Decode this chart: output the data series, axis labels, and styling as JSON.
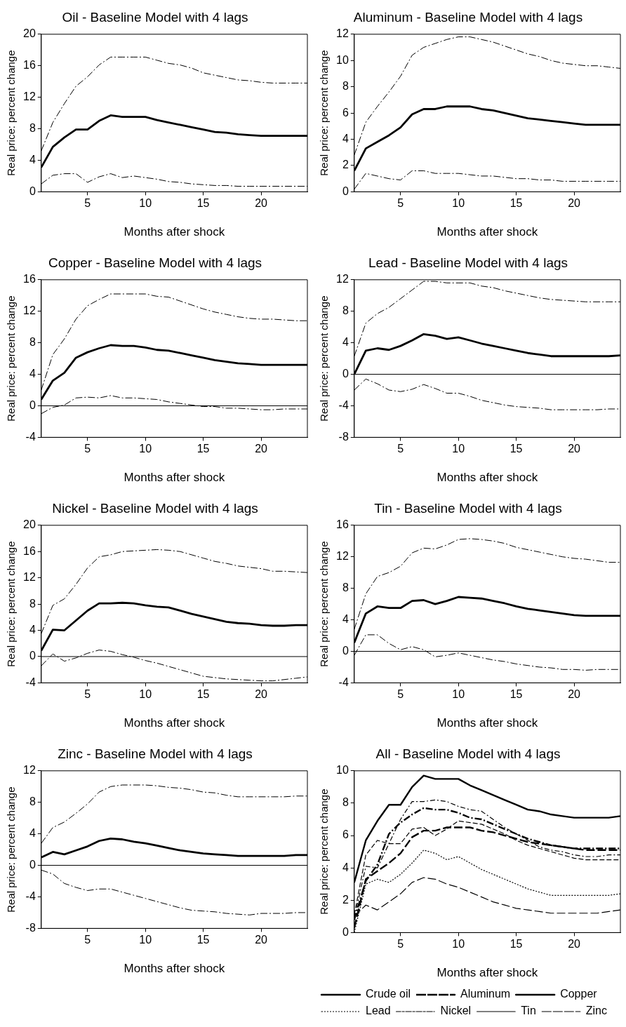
{
  "chart_data": [
    {
      "type": "line",
      "title": "Oil - Baseline Model with 4 lags",
      "xlabel": "Months after shock",
      "ylabel": "Real price: percent change",
      "x": [
        1,
        2,
        3,
        4,
        5,
        6,
        7,
        8,
        9,
        10,
        11,
        12,
        13,
        14,
        15,
        16,
        17,
        18,
        19,
        20,
        21,
        22,
        23,
        24
      ],
      "xlim": [
        1,
        24
      ],
      "xticks": [
        5,
        10,
        15,
        20
      ],
      "ylim": [
        0,
        20
      ],
      "yticks": [
        0,
        4,
        8,
        12,
        16,
        20
      ],
      "grid": false,
      "line_style": "solid",
      "series": [
        {
          "color": "#000000",
          "values": [
            3.1,
            5.7,
            6.9,
            7.9,
            7.9,
            9.0,
            9.7,
            9.5,
            9.5,
            9.5,
            9.1,
            8.8,
            8.5,
            8.2,
            7.9,
            7.6,
            7.5,
            7.3,
            7.2,
            7.1,
            7.1,
            7.1,
            7.1,
            7.1
          ]
        },
        {
          "color": "#000000",
          "line_style": "dashed",
          "values": [
            5.2,
            8.8,
            11.2,
            13.4,
            14.6,
            16.1,
            17.1,
            17.1,
            17.1,
            17.1,
            16.7,
            16.3,
            16.1,
            15.7,
            15.1,
            14.8,
            14.5,
            14.2,
            14.1,
            13.9,
            13.8,
            13.8,
            13.8,
            13.8
          ]
        },
        {
          "color": "#000000",
          "line_style": "dashed",
          "values": [
            1.0,
            2.1,
            2.3,
            2.3,
            1.2,
            1.9,
            2.3,
            1.8,
            2.0,
            1.8,
            1.6,
            1.3,
            1.2,
            1.0,
            0.9,
            0.8,
            0.8,
            0.7,
            0.7,
            0.7,
            0.7,
            0.7,
            0.7,
            0.7
          ]
        }
      ]
    },
    {
      "type": "line",
      "title": "Aluminum - Baseline Model with 4 lags",
      "xlabel": "Months after shock",
      "ylabel": "Real price: percent change",
      "x": [
        1,
        2,
        3,
        4,
        5,
        6,
        7,
        8,
        9,
        10,
        11,
        12,
        13,
        14,
        15,
        16,
        17,
        18,
        19,
        20,
        21,
        22,
        23,
        24
      ],
      "xlim": [
        1,
        24
      ],
      "xticks": [
        5,
        10,
        15,
        20
      ],
      "ylim": [
        0,
        12
      ],
      "yticks": [
        0,
        2,
        4,
        6,
        8,
        10,
        12
      ],
      "grid": false,
      "line_style": "solid",
      "series": [
        {
          "color": "#000000",
          "values": [
            1.6,
            3.3,
            3.8,
            4.3,
            4.9,
            5.9,
            6.3,
            6.3,
            6.5,
            6.5,
            6.5,
            6.3,
            6.2,
            6.0,
            5.8,
            5.6,
            5.5,
            5.4,
            5.3,
            5.2,
            5.1,
            5.1,
            5.1,
            5.1
          ]
        },
        {
          "color": "#000000",
          "line_style": "dashed",
          "values": [
            2.8,
            5.3,
            6.5,
            7.6,
            8.8,
            10.4,
            11.0,
            11.3,
            11.6,
            11.8,
            11.8,
            11.6,
            11.4,
            11.1,
            10.8,
            10.5,
            10.3,
            10.0,
            9.8,
            9.7,
            9.6,
            9.6,
            9.5,
            9.4
          ]
        },
        {
          "color": "#000000",
          "line_style": "dashed",
          "values": [
            0.2,
            1.4,
            1.2,
            1.0,
            0.9,
            1.6,
            1.6,
            1.4,
            1.4,
            1.4,
            1.3,
            1.2,
            1.2,
            1.1,
            1.0,
            1.0,
            0.9,
            0.9,
            0.8,
            0.8,
            0.8,
            0.8,
            0.8,
            0.8
          ]
        }
      ]
    },
    {
      "type": "line",
      "title": "Copper - Baseline Model with 4 lags",
      "xlabel": "Months after shock",
      "ylabel": "Real price: percent change",
      "x": [
        1,
        2,
        3,
        4,
        5,
        6,
        7,
        8,
        9,
        10,
        11,
        12,
        13,
        14,
        15,
        16,
        17,
        18,
        19,
        20,
        21,
        22,
        23,
        24
      ],
      "xlim": [
        1,
        24
      ],
      "xticks": [
        5,
        10,
        15,
        20
      ],
      "ylim": [
        -4,
        16
      ],
      "yticks": [
        -4,
        0,
        4,
        8,
        12,
        16
      ],
      "grid": false,
      "line_style": "solid",
      "ref_lines": [
        {
          "axis": "y",
          "value": 0
        }
      ],
      "series": [
        {
          "color": "#000000",
          "values": [
            0.8,
            3.2,
            4.2,
            6.1,
            6.8,
            7.3,
            7.7,
            7.6,
            7.6,
            7.4,
            7.1,
            7.0,
            6.7,
            6.4,
            6.1,
            5.8,
            5.6,
            5.4,
            5.3,
            5.2,
            5.2,
            5.2,
            5.2,
            5.2
          ]
        },
        {
          "color": "#000000",
          "line_style": "dashed",
          "values": [
            2.0,
            6.5,
            8.5,
            11.0,
            12.7,
            13.5,
            14.2,
            14.2,
            14.2,
            14.2,
            13.9,
            13.8,
            13.3,
            12.8,
            12.3,
            11.9,
            11.6,
            11.3,
            11.1,
            11.0,
            11.0,
            10.9,
            10.8,
            10.8
          ]
        },
        {
          "color": "#000000",
          "line_style": "dashed",
          "values": [
            -1.0,
            -0.2,
            0.1,
            1.0,
            1.1,
            1.0,
            1.3,
            1.0,
            1.0,
            0.9,
            0.8,
            0.5,
            0.3,
            0.1,
            -0.1,
            -0.1,
            -0.3,
            -0.3,
            -0.4,
            -0.5,
            -0.5,
            -0.4,
            -0.4,
            -0.4
          ]
        }
      ]
    },
    {
      "type": "line",
      "title": "Lead - Baseline Model with 4 lags",
      "xlabel": "Months after shock",
      "ylabel": "Real price: percent change",
      "x": [
        1,
        2,
        3,
        4,
        5,
        6,
        7,
        8,
        9,
        10,
        11,
        12,
        13,
        14,
        15,
        16,
        17,
        18,
        19,
        20,
        21,
        22,
        23,
        24
      ],
      "xlim": [
        1,
        24
      ],
      "xticks": [
        5,
        10,
        15,
        20
      ],
      "ylim": [
        -8,
        12
      ],
      "yticks": [
        -8,
        -4,
        0,
        4,
        8,
        12
      ],
      "grid": false,
      "line_style": "solid",
      "ref_lines": [
        {
          "axis": "y",
          "value": 0
        }
      ],
      "series": [
        {
          "color": "#000000",
          "values": [
            0.0,
            3.0,
            3.3,
            3.1,
            3.6,
            4.3,
            5.1,
            4.9,
            4.5,
            4.7,
            4.3,
            3.9,
            3.6,
            3.3,
            3.0,
            2.7,
            2.5,
            2.3,
            2.3,
            2.3,
            2.3,
            2.3,
            2.3,
            2.4
          ]
        },
        {
          "color": "#000000",
          "line_style": "dashed",
          "values": [
            2.3,
            6.5,
            7.7,
            8.5,
            9.6,
            10.7,
            11.8,
            11.8,
            11.6,
            11.6,
            11.6,
            11.2,
            11.0,
            10.6,
            10.3,
            10.0,
            9.7,
            9.5,
            9.4,
            9.3,
            9.2,
            9.2,
            9.2,
            9.2
          ]
        },
        {
          "color": "#000000",
          "line_style": "dashed",
          "values": [
            -2.0,
            -0.6,
            -1.2,
            -2.0,
            -2.2,
            -1.9,
            -1.3,
            -1.8,
            -2.4,
            -2.4,
            -2.8,
            -3.3,
            -3.6,
            -3.9,
            -4.1,
            -4.2,
            -4.3,
            -4.5,
            -4.5,
            -4.5,
            -4.5,
            -4.5,
            -4.4,
            -4.4
          ]
        }
      ]
    },
    {
      "type": "line",
      "title": "Nickel - Baseline Model with 4 lags",
      "xlabel": "Months after shock",
      "ylabel": "Real price: percent change",
      "x": [
        1,
        2,
        3,
        4,
        5,
        6,
        7,
        8,
        9,
        10,
        11,
        12,
        13,
        14,
        15,
        16,
        17,
        18,
        19,
        20,
        21,
        22,
        23,
        24
      ],
      "xlim": [
        1,
        24
      ],
      "xticks": [
        5,
        10,
        15,
        20
      ],
      "ylim": [
        -4,
        20
      ],
      "yticks": [
        -4,
        0,
        4,
        8,
        12,
        16,
        20
      ],
      "grid": false,
      "line_style": "solid",
      "ref_lines": [
        {
          "axis": "y",
          "value": 0
        }
      ],
      "series": [
        {
          "color": "#000000",
          "values": [
            0.9,
            4.1,
            4.0,
            5.5,
            7.0,
            8.1,
            8.1,
            8.2,
            8.1,
            7.8,
            7.6,
            7.5,
            7.0,
            6.5,
            6.1,
            5.7,
            5.3,
            5.1,
            5.0,
            4.8,
            4.7,
            4.7,
            4.8,
            4.8
          ]
        },
        {
          "color": "#000000",
          "line_style": "dashed",
          "values": [
            3.5,
            7.8,
            8.8,
            11.0,
            13.5,
            15.2,
            15.5,
            16.0,
            16.1,
            16.2,
            16.3,
            16.2,
            16.0,
            15.5,
            15.0,
            14.5,
            14.2,
            13.8,
            13.6,
            13.4,
            13.0,
            13.0,
            12.9,
            12.8
          ]
        },
        {
          "color": "#000000",
          "line_style": "dashed",
          "values": [
            -1.4,
            0.4,
            -0.7,
            -0.2,
            0.5,
            1.0,
            0.8,
            0.3,
            -0.1,
            -0.6,
            -1.0,
            -1.5,
            -2.0,
            -2.5,
            -3.0,
            -3.2,
            -3.4,
            -3.5,
            -3.6,
            -3.7,
            -3.7,
            -3.5,
            -3.3,
            -3.1
          ]
        }
      ]
    },
    {
      "type": "line",
      "title": "Tin - Baseline Model with 4 lags",
      "xlabel": "Months after shock",
      "ylabel": "Real price: percent change",
      "x": [
        1,
        2,
        3,
        4,
        5,
        6,
        7,
        8,
        9,
        10,
        11,
        12,
        13,
        14,
        15,
        16,
        17,
        18,
        19,
        20,
        21,
        22,
        23,
        24
      ],
      "xlim": [
        1,
        24
      ],
      "xticks": [
        5,
        10,
        15,
        20
      ],
      "ylim": [
        -4,
        16
      ],
      "yticks": [
        -4,
        0,
        4,
        8,
        12,
        16
      ],
      "grid": false,
      "line_style": "solid",
      "ref_lines": [
        {
          "axis": "y",
          "value": 0
        }
      ],
      "series": [
        {
          "color": "#000000",
          "values": [
            1.1,
            4.8,
            5.7,
            5.5,
            5.5,
            6.4,
            6.5,
            6.0,
            6.4,
            6.9,
            6.8,
            6.7,
            6.4,
            6.1,
            5.7,
            5.4,
            5.2,
            5.0,
            4.8,
            4.6,
            4.5,
            4.5,
            4.5,
            4.5
          ]
        },
        {
          "color": "#000000",
          "line_style": "dashed",
          "values": [
            2.8,
            7.3,
            9.5,
            10.0,
            10.8,
            12.5,
            13.1,
            13.0,
            13.5,
            14.2,
            14.3,
            14.2,
            14.0,
            13.7,
            13.2,
            12.9,
            12.6,
            12.3,
            12.0,
            11.8,
            11.7,
            11.5,
            11.3,
            11.3
          ]
        },
        {
          "color": "#000000",
          "line_style": "dashed",
          "values": [
            -0.5,
            2.1,
            2.1,
            1.0,
            0.2,
            0.6,
            0.2,
            -0.7,
            -0.5,
            -0.2,
            -0.5,
            -0.8,
            -1.1,
            -1.3,
            -1.6,
            -1.8,
            -2.0,
            -2.1,
            -2.3,
            -2.3,
            -2.4,
            -2.3,
            -2.3,
            -2.3
          ]
        }
      ]
    },
    {
      "type": "line",
      "title": "Zinc - Baseline Model with 4 lags",
      "xlabel": "Months after shock",
      "ylabel": "Real price: percent change",
      "x": [
        1,
        2,
        3,
        4,
        5,
        6,
        7,
        8,
        9,
        10,
        11,
        12,
        13,
        14,
        15,
        16,
        17,
        18,
        19,
        20,
        21,
        22,
        23,
        24
      ],
      "xlim": [
        1,
        24
      ],
      "xticks": [
        5,
        10,
        15,
        20
      ],
      "ylim": [
        -8,
        12
      ],
      "yticks": [
        -8,
        -4,
        0,
        4,
        8,
        12
      ],
      "grid": false,
      "line_style": "solid",
      "ref_lines": [
        {
          "axis": "y",
          "value": 0
        }
      ],
      "series": [
        {
          "color": "#000000",
          "values": [
            1.0,
            1.7,
            1.4,
            1.9,
            2.4,
            3.1,
            3.4,
            3.3,
            3.0,
            2.8,
            2.5,
            2.2,
            1.9,
            1.7,
            1.5,
            1.4,
            1.3,
            1.2,
            1.2,
            1.2,
            1.2,
            1.2,
            1.3,
            1.3
          ]
        },
        {
          "color": "#000000",
          "line_style": "dashed",
          "values": [
            2.8,
            4.8,
            5.5,
            6.6,
            7.8,
            9.3,
            10.0,
            10.2,
            10.2,
            10.2,
            10.1,
            9.9,
            9.8,
            9.6,
            9.3,
            9.2,
            8.9,
            8.7,
            8.7,
            8.7,
            8.7,
            8.7,
            8.8,
            8.8
          ]
        },
        {
          "color": "#000000",
          "line_style": "dashed",
          "values": [
            -0.6,
            -1.1,
            -2.3,
            -2.8,
            -3.2,
            -3.0,
            -3.0,
            -3.4,
            -3.8,
            -4.2,
            -4.6,
            -5.0,
            -5.4,
            -5.7,
            -5.8,
            -5.9,
            -6.1,
            -6.2,
            -6.3,
            -6.1,
            -6.1,
            -6.1,
            -6.0,
            -6.0
          ]
        }
      ]
    },
    {
      "type": "line",
      "title": "All - Baseline Model with 4 lags",
      "xlabel": "Months after shock",
      "ylabel": "Real price: percent change",
      "x": [
        1,
        2,
        3,
        4,
        5,
        6,
        7,
        8,
        9,
        10,
        11,
        12,
        13,
        14,
        15,
        16,
        17,
        18,
        19,
        20,
        21,
        22,
        23,
        24
      ],
      "xlim": [
        1,
        24
      ],
      "xticks": [
        5,
        10,
        15,
        20
      ],
      "ylim": [
        0,
        10
      ],
      "yticks": [
        0,
        2,
        4,
        6,
        8,
        10
      ],
      "grid": false,
      "legend": "bottom",
      "series": [
        {
          "name": "Crude oil",
          "color": "#000000",
          "line_style": "solid",
          "values": [
            3.1,
            5.7,
            6.9,
            7.9,
            7.9,
            9.0,
            9.7,
            9.5,
            9.5,
            9.5,
            9.1,
            8.8,
            8.5,
            8.2,
            7.9,
            7.6,
            7.5,
            7.3,
            7.2,
            7.1,
            7.1,
            7.1,
            7.1,
            7.2
          ]
        },
        {
          "name": "Aluminum",
          "color": "#000000",
          "line_style": "dashed",
          "values": [
            0.3,
            3.3,
            3.8,
            4.3,
            4.9,
            5.9,
            6.3,
            6.3,
            6.5,
            6.5,
            6.5,
            6.3,
            6.2,
            6.0,
            5.8,
            5.6,
            5.5,
            5.4,
            5.3,
            5.2,
            5.1,
            5.1,
            5.1,
            5.1
          ]
        },
        {
          "name": "Copper",
          "color": "#000000",
          "line_style": "dashed",
          "values": [
            0.8,
            3.2,
            4.2,
            6.1,
            6.8,
            7.3,
            7.7,
            7.6,
            7.6,
            7.4,
            7.1,
            7.0,
            6.7,
            6.4,
            6.1,
            5.8,
            5.6,
            5.4,
            5.3,
            5.2,
            5.2,
            5.2,
            5.2,
            5.2
          ]
        },
        {
          "name": "Lead",
          "color": "#000000",
          "line_style": "dotted",
          "values": [
            0.0,
            3.0,
            3.3,
            3.1,
            3.6,
            4.3,
            5.1,
            4.9,
            4.5,
            4.7,
            4.3,
            3.9,
            3.6,
            3.3,
            3.0,
            2.7,
            2.5,
            2.3,
            2.3,
            2.3,
            2.3,
            2.3,
            2.3,
            2.4
          ]
        },
        {
          "name": "Nickel",
          "color": "#000000",
          "line_style": "dashed",
          "values": [
            0.9,
            4.1,
            4.0,
            5.5,
            7.0,
            8.1,
            8.1,
            8.2,
            8.1,
            7.8,
            7.6,
            7.5,
            7.0,
            6.5,
            6.1,
            5.7,
            5.3,
            5.1,
            5.0,
            4.8,
            4.7,
            4.7,
            4.8,
            4.8
          ]
        },
        {
          "name": "Tin",
          "color": "#000000",
          "line_style": "dashed",
          "values": [
            1.1,
            4.8,
            5.7,
            5.5,
            5.5,
            6.4,
            6.5,
            6.0,
            6.4,
            6.9,
            6.8,
            6.7,
            6.4,
            6.1,
            5.7,
            5.4,
            5.2,
            5.0,
            4.8,
            4.6,
            4.5,
            4.5,
            4.5,
            4.5
          ]
        },
        {
          "name": "Zinc",
          "color": "#000000",
          "line_style": "dashed",
          "values": [
            1.0,
            1.7,
            1.4,
            1.9,
            2.4,
            3.1,
            3.4,
            3.3,
            3.0,
            2.8,
            2.5,
            2.2,
            1.9,
            1.7,
            1.5,
            1.4,
            1.3,
            1.2,
            1.2,
            1.2,
            1.2,
            1.2,
            1.3,
            1.4
          ]
        }
      ]
    }
  ]
}
